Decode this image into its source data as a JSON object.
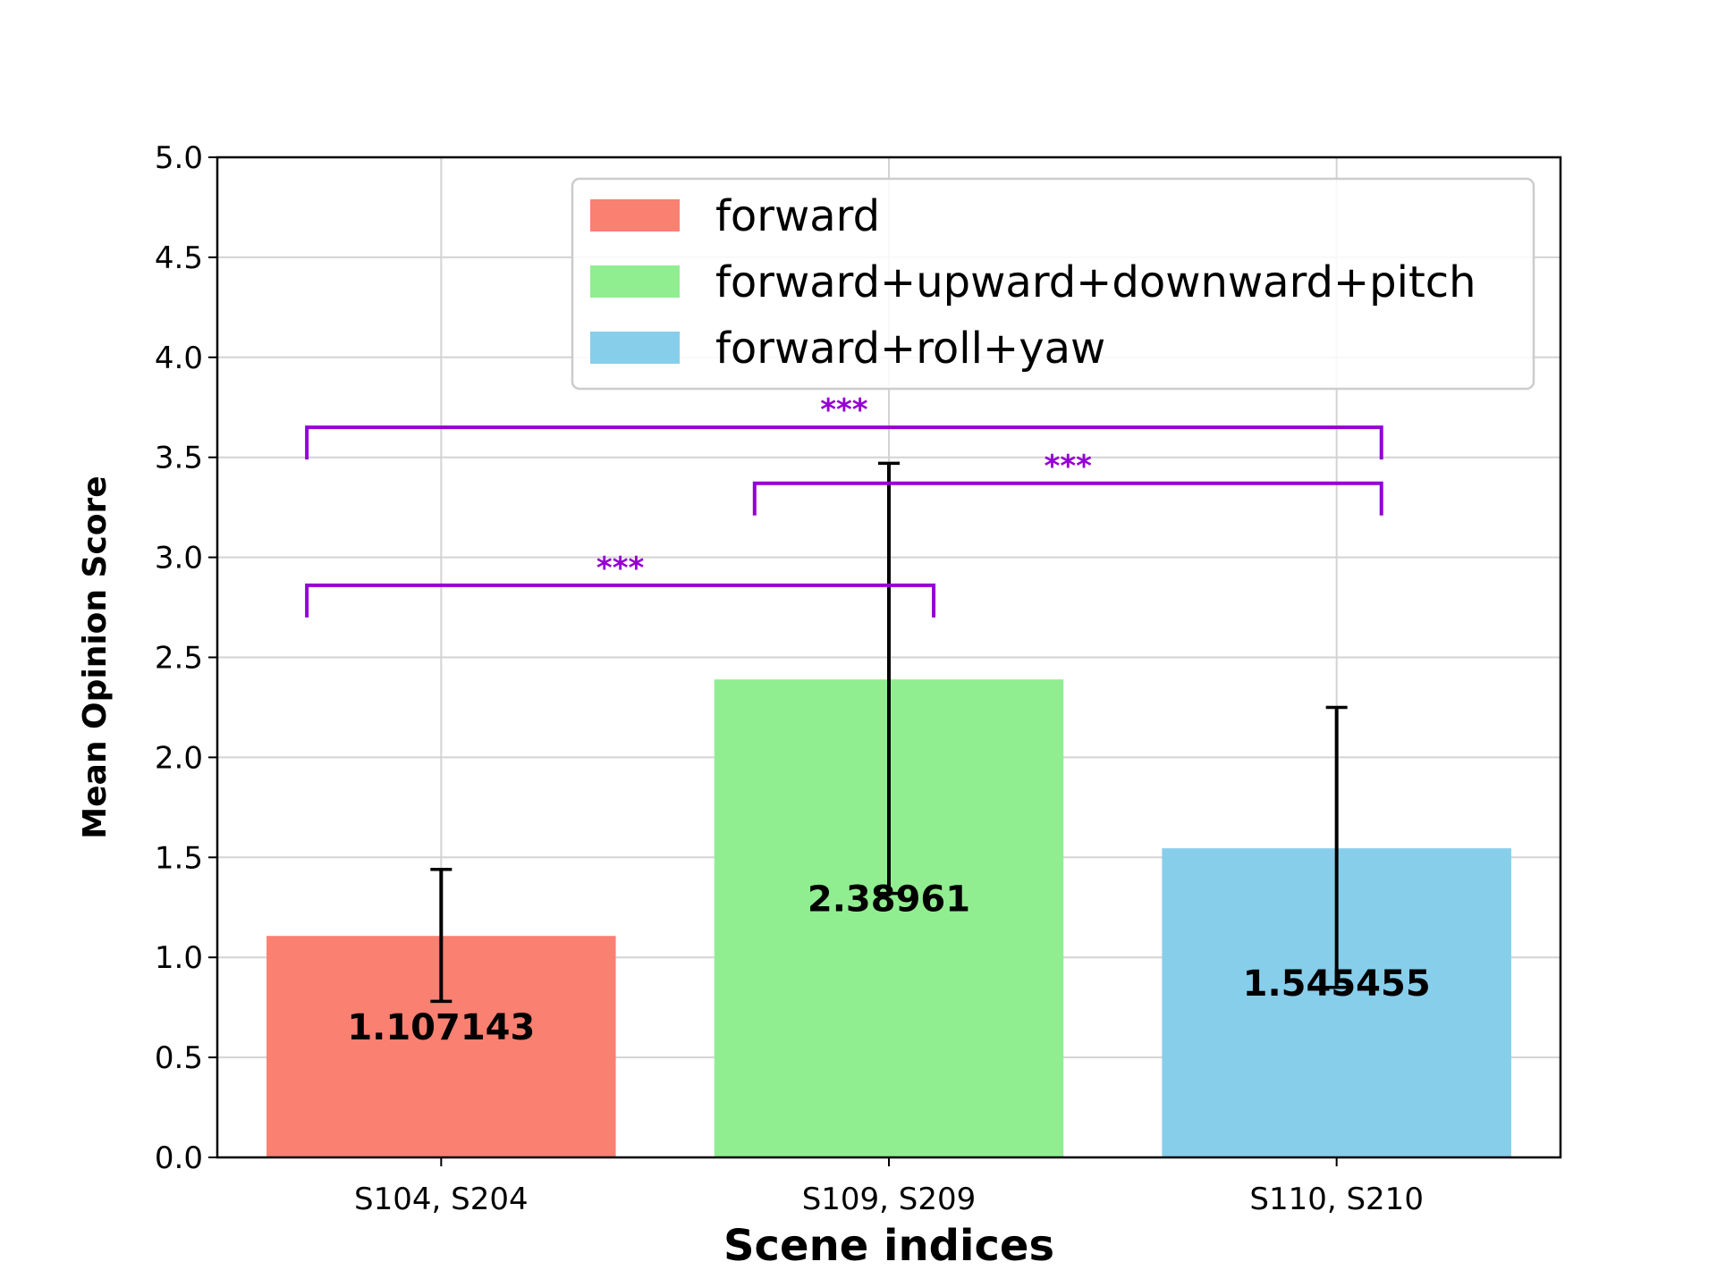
{
  "chart_data": {
    "type": "bar",
    "title": "",
    "xlabel": "Scene indices",
    "ylabel": "Mean Opinion Score",
    "categories": [
      "S104, S204",
      "S109, S209",
      "S110, S210"
    ],
    "series": [
      {
        "name": "forward",
        "color": "#fa8072",
        "value": 1.107143,
        "label": "1.107143",
        "err_low": 0.78,
        "err_high": 1.44
      },
      {
        "name": "forward+upward+downward+pitch",
        "color": "#90ee90",
        "value": 2.38961,
        "label": "2.38961",
        "err_low": 1.32,
        "err_high": 3.47
      },
      {
        "name": "forward+roll+yaw",
        "color": "#87ceeb",
        "value": 1.545455,
        "label": "1.545455",
        "err_low": 0.85,
        "err_high": 2.25
      }
    ],
    "ylim": [
      0,
      5.0
    ],
    "yticks": [
      "0.0",
      "0.5",
      "1.0",
      "1.5",
      "2.0",
      "2.5",
      "3.0",
      "3.5",
      "4.0",
      "4.5",
      "5.0"
    ],
    "grid": true,
    "legend_position": "top-right",
    "significance": [
      {
        "from": 0,
        "to": 1,
        "level": 2.86,
        "label": "***"
      },
      {
        "from": 0,
        "to": 2,
        "level": 3.65,
        "label": "***"
      },
      {
        "from": 1,
        "to": 2,
        "level": 3.37,
        "label": "***"
      }
    ],
    "significance_color": "#9400d3"
  }
}
